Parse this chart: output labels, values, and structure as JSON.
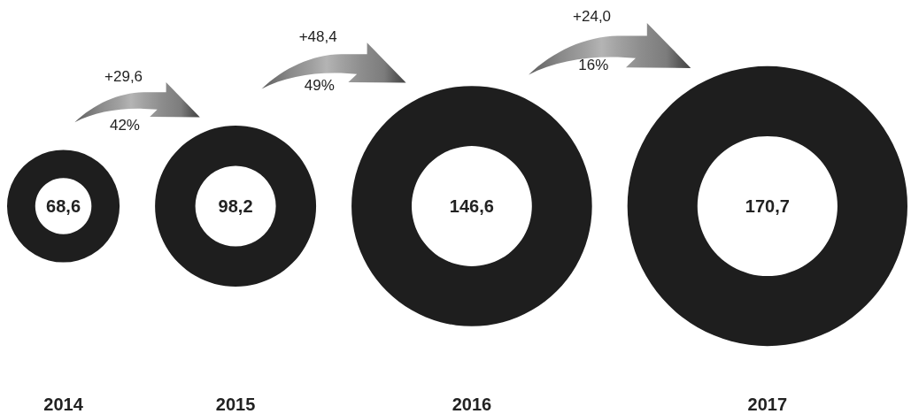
{
  "chart_data": {
    "type": "other",
    "categories": [
      "2014",
      "2015",
      "2016",
      "2017"
    ],
    "values": [
      68.6,
      98.2,
      146.6,
      170.7
    ],
    "value_labels": [
      "68,6",
      "98,2",
      "146,6",
      "170,7"
    ],
    "color": "#1e1e1e",
    "annotations": [
      "+29,6",
      "42%",
      "+48,4",
      "49%",
      "+24,0",
      "16%"
    ]
  }
}
